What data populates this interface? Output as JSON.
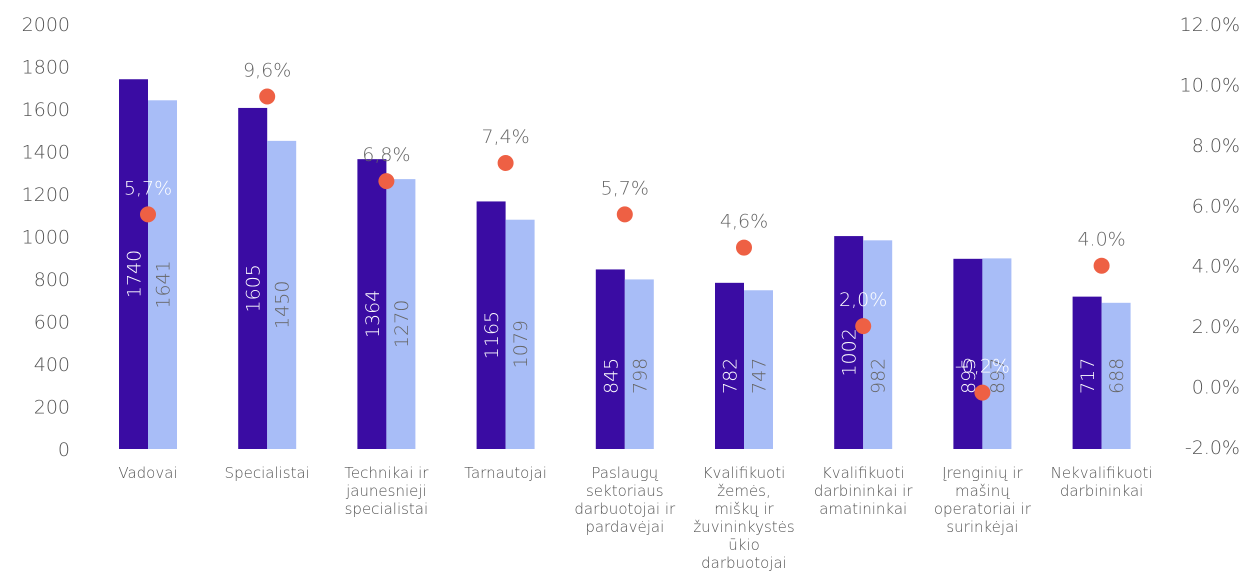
{
  "chart_data": {
    "type": "bar",
    "categories": [
      [
        "Vadovai"
      ],
      [
        "Specialistai"
      ],
      [
        "Technikai ir",
        "jaunesnieji",
        "specialistai"
      ],
      [
        "Tarnautojai"
      ],
      [
        "Paslaugų",
        "sektoriaus",
        "darbuotojai ir",
        "pardavėjai"
      ],
      [
        "Kvalifikuoti",
        "žemės,",
        "miškų ir",
        "žuvininkystės",
        "ūkio",
        "darbuotojai"
      ],
      [
        "Kvalifikuoti",
        "darbininkai ir",
        "amatininkai"
      ],
      [
        "Įrenginių ir",
        "mašinų",
        "operatoriai ir",
        "surinkėjai"
      ],
      [
        "Nekvalifikuoti",
        "darbininkai"
      ]
    ],
    "series": [
      {
        "values": [
          1740,
          1605,
          1364,
          1165,
          845,
          782,
          1002,
          895,
          717
        ],
        "color": "#3a0ca3",
        "label_color": "#ffffff"
      },
      {
        "values": [
          1641,
          1450,
          1270,
          1079,
          798,
          747,
          982,
          897,
          688
        ],
        "color": "#a8bdf7",
        "label_color": "#666666"
      }
    ],
    "change": {
      "values": [
        5.7,
        9.6,
        6.8,
        7.4,
        5.7,
        4.6,
        2.0,
        -0.2,
        4.0
      ],
      "labels": [
        "5,7%",
        "9,6%",
        "6,8%",
        "7,4%",
        "5,7%",
        "4,6%",
        "2,0%",
        "-0,2%",
        "4.0%"
      ],
      "label_colors": [
        "#ffffff",
        "#666666",
        "#666666",
        "#666666",
        "#666666",
        "#666666",
        "#ffffff",
        "#ffffff",
        "#666666"
      ],
      "color": "#ee6044"
    },
    "y_left": {
      "min": 0,
      "max": 2000,
      "ticks": [
        0,
        200,
        400,
        600,
        800,
        1000,
        1200,
        1400,
        1600,
        1800,
        2000
      ],
      "tick_labels": [
        "0",
        "200",
        "400",
        "600",
        "800",
        "1000",
        "1200",
        "1400",
        "1600",
        "1800",
        "2000"
      ]
    },
    "y_right": {
      "min": -2,
      "max": 12,
      "ticks": [
        -2,
        0,
        2,
        4,
        6,
        8,
        10,
        12
      ],
      "tick_labels": [
        "-2.0%",
        "0.0%",
        "2.0%",
        "4.0%",
        "6.0%",
        "8.0%",
        "10.0%",
        "12.0%"
      ]
    },
    "grid": false,
    "legend": "none"
  }
}
